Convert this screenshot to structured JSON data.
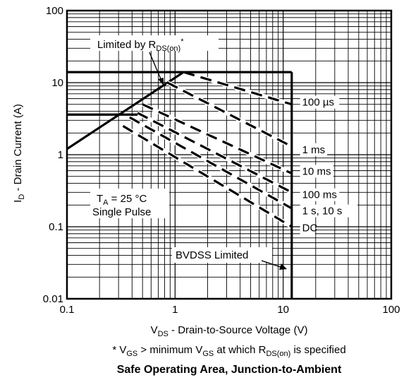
{
  "chart_data": {
    "type": "line",
    "title": "Safe Operating Area, Junction-to-Ambient",
    "footnote": {
      "prefix": "* V",
      "sub1": "GS",
      "mid": " > minimum V",
      "sub2": "GS",
      "mid2": " at which R",
      "sub3": "DS(on)",
      "suffix": " is specified"
    },
    "xlabel": {
      "main": "V",
      "sub": "DS",
      "rest": " - Drain-to-Source Voltage (V)"
    },
    "ylabel": {
      "main": "I",
      "sub": "D",
      "rest": " - Drain Current (A)"
    },
    "x_scale": "log",
    "y_scale": "log",
    "xlim": [
      0.1,
      100
    ],
    "ylim": [
      0.01,
      100
    ],
    "x_ticks": [
      "0.1",
      "1",
      "10",
      "100"
    ],
    "y_ticks": [
      "100",
      "10",
      "1",
      "0.1",
      "0.01"
    ],
    "grid": true,
    "annotations": {
      "rds_limit": {
        "main": "Limited by R",
        "sub": "DS(on)",
        "sup": "*"
      },
      "conditions_line1": {
        "main": "T",
        "sub": "A",
        "rest": " = 25 °C"
      },
      "conditions_line2": "Single Pulse",
      "bvdss": "BVDSS Limited"
    },
    "series": [
      {
        "name": "Limited by RDS(on)*",
        "style": "solid",
        "x": [
          0.1,
          1.2
        ],
        "y": [
          1.2,
          14
        ]
      },
      {
        "name": "100 µs",
        "style": "dashed",
        "x": [
          1.2,
          12
        ],
        "y": [
          14,
          5
        ]
      },
      {
        "name": "1 ms",
        "style": "dashed",
        "x": [
          0.85,
          12
        ],
        "y": [
          10,
          1.3
        ]
      },
      {
        "name": "10 ms",
        "style": "dashed",
        "x": [
          0.5,
          12
        ],
        "y": [
          5,
          0.55
        ]
      },
      {
        "name": "100 ms",
        "style": "dashed",
        "x": [
          0.45,
          12
        ],
        "y": [
          3.8,
          0.3
        ]
      },
      {
        "name": "1 s, 10 s",
        "style": "dashed",
        "x": [
          0.38,
          12
        ],
        "y": [
          3.3,
          0.18
        ]
      },
      {
        "name": "DC",
        "style": "dashed",
        "x": [
          0.33,
          12
        ],
        "y": [
          2.5,
          0.1
        ]
      },
      {
        "name": "BVDSS Limited",
        "style": "solid",
        "x": [
          12,
          12
        ],
        "y": [
          0.01,
          14
        ]
      },
      {
        "name": "Pulsed current limit",
        "style": "solid",
        "x": [
          0.1,
          12
        ],
        "y": [
          14,
          14
        ]
      },
      {
        "name": "Continuous current limit",
        "style": "solid",
        "x": [
          0.1,
          0.45
        ],
        "y": [
          3.6,
          3.6
        ]
      }
    ],
    "series_labels": [
      {
        "text": "100 µs",
        "x": 15,
        "y": 5
      },
      {
        "text": "1 ms",
        "x": 15,
        "y": 1.1
      },
      {
        "text": "10 ms",
        "x": 15,
        "y": 0.55
      },
      {
        "text": "100 ms",
        "x": 15,
        "y": 0.26
      },
      {
        "text": "1 s, 10 s",
        "x": 15,
        "y": 0.155
      },
      {
        "text": "DC",
        "x": 15,
        "y": 0.09
      }
    ]
  }
}
